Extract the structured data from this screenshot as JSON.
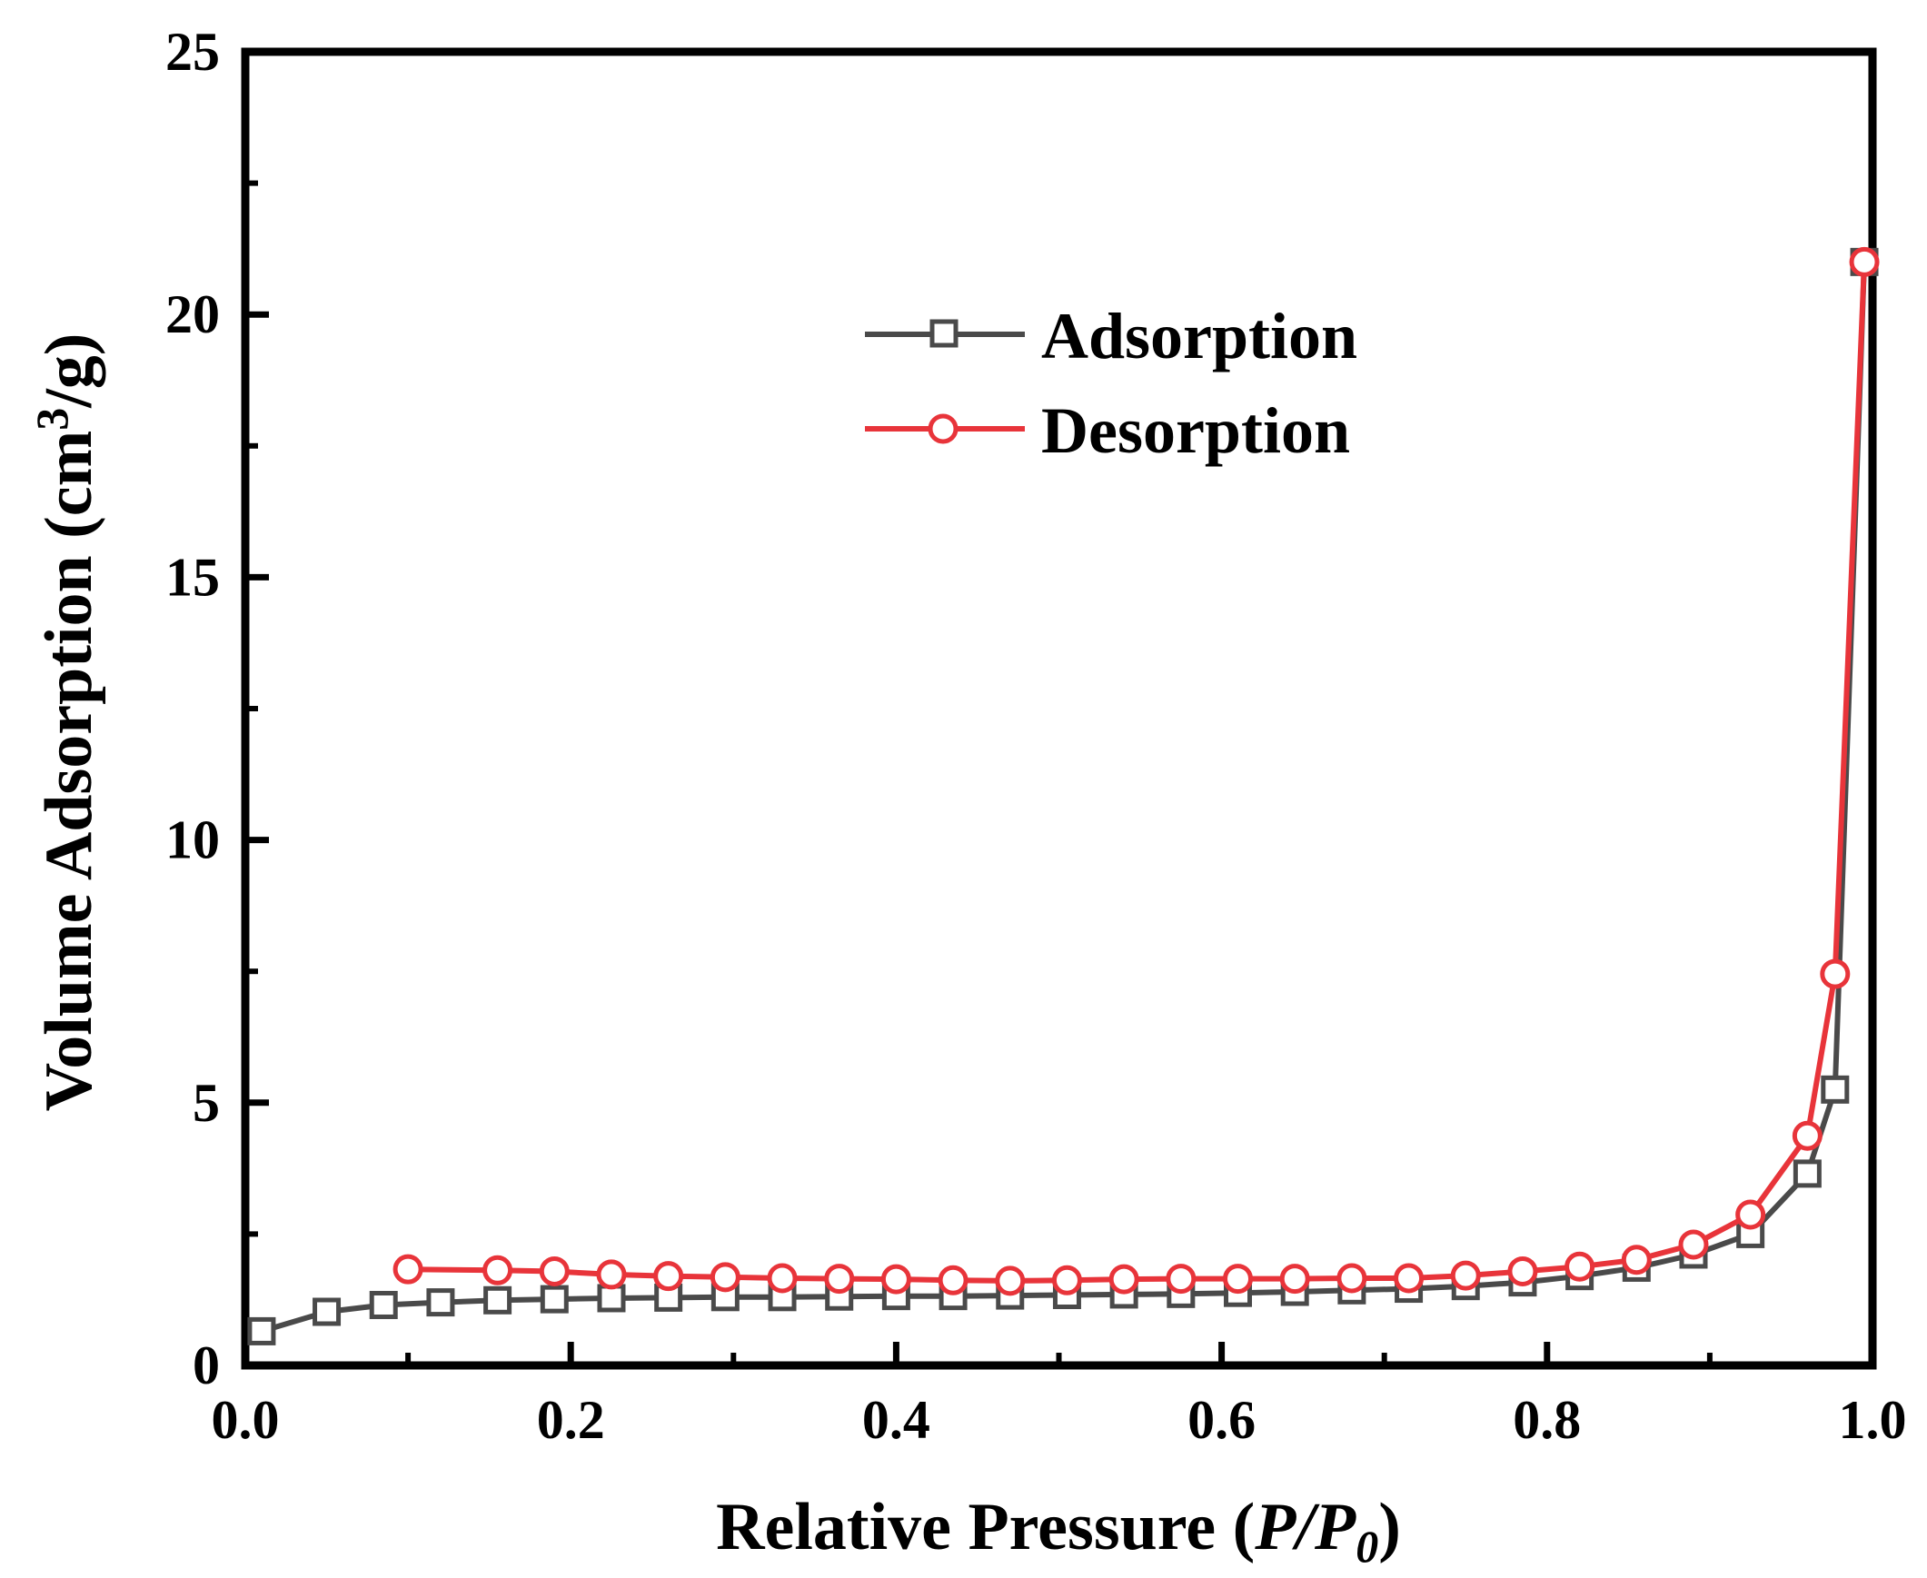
{
  "chart_data": {
    "type": "line",
    "title": "",
    "xlabel": {
      "main": "Relative Pressure (",
      "p": "P",
      "slash": "/",
      "p0": "P",
      "p0_sub": "0",
      "close": ")"
    },
    "ylabel": {
      "main": "Volume Adsorption (cm",
      "sup": "3",
      "tail": "/g)"
    },
    "xlim": [
      0.0,
      1.0
    ],
    "ylim": [
      0,
      25
    ],
    "xticks": [
      0.0,
      0.2,
      0.4,
      0.6,
      0.8,
      1.0
    ],
    "xtick_labels": [
      "0.0",
      "0.2",
      "0.4",
      "0.6",
      "0.8",
      "1.0"
    ],
    "yticks": [
      0,
      5,
      10,
      15,
      20,
      25
    ],
    "ytick_labels": [
      "0",
      "5",
      "10",
      "15",
      "20",
      "25"
    ],
    "grid": false,
    "legend_position": "top-center",
    "series": [
      {
        "name": "Adsorption",
        "color": "#4a4a4a",
        "marker": "square",
        "x": [
          0.01,
          0.05,
          0.085,
          0.12,
          0.155,
          0.19,
          0.225,
          0.26,
          0.295,
          0.33,
          0.365,
          0.4,
          0.435,
          0.47,
          0.505,
          0.54,
          0.575,
          0.61,
          0.645,
          0.68,
          0.715,
          0.75,
          0.785,
          0.82,
          0.855,
          0.89,
          0.925,
          0.96,
          0.977,
          0.995
        ],
        "y": [
          0.65,
          1.02,
          1.15,
          1.2,
          1.24,
          1.26,
          1.28,
          1.29,
          1.3,
          1.3,
          1.31,
          1.32,
          1.32,
          1.33,
          1.34,
          1.35,
          1.36,
          1.38,
          1.4,
          1.43,
          1.46,
          1.51,
          1.58,
          1.7,
          1.86,
          2.11,
          2.5,
          3.65,
          5.25,
          21.0
        ]
      },
      {
        "name": "Desorption",
        "color": "#e8343a",
        "marker": "circle",
        "x": [
          0.1,
          0.155,
          0.19,
          0.225,
          0.26,
          0.295,
          0.33,
          0.365,
          0.4,
          0.435,
          0.47,
          0.505,
          0.54,
          0.575,
          0.61,
          0.645,
          0.68,
          0.715,
          0.75,
          0.785,
          0.82,
          0.855,
          0.89,
          0.925,
          0.96,
          0.977,
          0.995
        ],
        "y": [
          1.83,
          1.81,
          1.79,
          1.73,
          1.7,
          1.68,
          1.66,
          1.65,
          1.64,
          1.62,
          1.61,
          1.62,
          1.64,
          1.65,
          1.65,
          1.65,
          1.66,
          1.66,
          1.71,
          1.79,
          1.88,
          2.01,
          2.3,
          2.87,
          4.37,
          7.45,
          21.0
        ]
      }
    ]
  }
}
